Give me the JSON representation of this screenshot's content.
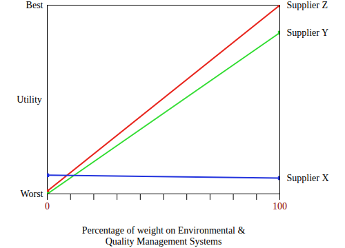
{
  "chart_data": {
    "type": "line",
    "x_label": "Percentage of weight on Environmental &\nQuality Management Systems",
    "y_label": "Utility",
    "x": [
      0,
      100
    ],
    "xlim": [
      0,
      100
    ],
    "xticks": [
      0,
      {
        "value": 10,
        "label": null
      },
      {
        "value": 20,
        "label": null
      },
      {
        "value": 30,
        "label": null
      },
      {
        "value": 40,
        "label": null
      },
      {
        "value": 50,
        "label": null
      },
      {
        "value": 60,
        "label": null
      },
      {
        "value": 70,
        "label": null
      },
      {
        "value": 80,
        "label": null
      },
      {
        "value": 90,
        "label": null
      },
      100
    ],
    "ylim": [
      0,
      1
    ],
    "yticks": [
      {
        "value": 0,
        "label": "Worst"
      },
      {
        "value": 1,
        "label": "Best"
      }
    ],
    "series": [
      {
        "name": "Supplier Z",
        "color": "#e8261e",
        "marker": "square",
        "values": [
          0.015,
          1.0
        ]
      },
      {
        "name": "Supplier Y",
        "color": "#33dd33",
        "marker": "square",
        "values": [
          0.0,
          0.854
        ]
      },
      {
        "name": "Supplier X",
        "color": "#2233dd",
        "marker": "square",
        "values": [
          0.099,
          0.084
        ]
      }
    ]
  }
}
